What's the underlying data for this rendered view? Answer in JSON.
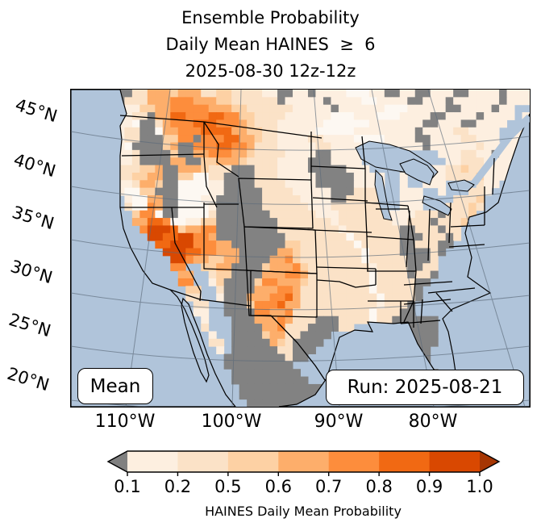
{
  "title": {
    "line1": "Ensemble Probability",
    "line2": "Daily Mean HAINES  ≥  6",
    "line3": "2025-08-30 12z-12z"
  },
  "map": {
    "stat_label": "Mean",
    "run_label": "Run: 2025-08-21",
    "y_axis": {
      "labels": [
        "45°N",
        "40°N",
        "35°N",
        "30°N",
        "25°N",
        "20°N"
      ]
    },
    "x_axis": {
      "labels": [
        "110°W",
        "100°W",
        "90°W",
        "80°W"
      ]
    },
    "ocean_color": "#b0c4da",
    "mask_color": "#828282",
    "palette": {
      "o": "#b0c4da",
      "L": "#b0c4da",
      "g": "#828282",
      "w": "#fdf8f2",
      "1": "#fdefe0",
      "2": "#fbe2c7",
      "3": "#fdd1a4",
      "4": "#fdae6b",
      "5": "#fd8d3c",
      "6": "#f16913",
      "7": "#d94801"
    },
    "grid": [
      "oooooogg2244434442233222211gg11g1111www11gg11gg111gg1111g111",
      "oooooog22244455544433222222g11111g1111ww1111gg111g111111g111",
      "oooooog113344555554443322222211111g111111www11111gg1111g11LL",
      "oooooo1122g44665556655332222111111www111www1111gg1111g1111L1",
      "oooooo11wgg2455566655543222111111wwwwww1111111gg111gg1111LL1",
      "oooooo122ggw44555666644332211111wwwww11111111g1111221111LL11",
      "oooooo122ggg3355g55566443221111221111wwww1111gg111122111L111",
      "oooooo1wgggg34gg5556655422211111221111www11111g1111112111111",
      "oooooo112gggg3gg4455544322221111gg11111LLLLLLLLL1112211g1111",
      "oooooo112gggg44gg33444322221111ggg1111LLLLLLLLLLL11222111111",
      "oooooo222334gg4443222ggg2221111ggggg111LLLLgLLL11223221111oo",
      "oooooo223344gg33ww22gggg22211111ggggg1111LL1LLL1122223111ooo",
      "oooooo112443ggwwww11gggg22221111ggggg1111LL1LL111LLLL211oooo",
      "oooooo1ww33gggwwww11ggggg222211111ggg2222LL111LL1LLL221ooooo",
      "ooooooo1ww44ggwww11gggggg222221111gg22222LL111LLLL2223oooooo",
      "ooooooo2ww54ggwwww1gggggg2222221112222222LL111LLL22232oooooo",
      "oooooooo355wggwwww2ggggggg2222221112222221111222g2223ooooooo",
      "oooooooo44665ww1133gggggggg22222221222222211222g2223oooooooo",
      "ooooooooo5777634455gggggggg2222222212222222gg222g22ooooooooo",
      "oooooooooo776677554ggggggggg22222222w222222ggg222g2ooooooooo",
      "ooooooooooo6677755544ggggggg332222222w22222gg222ggoooooooooo",
      "oooooooooooo7776655444ggggg44322222222w2222gggg2gooooooooooo",
      "ooooooooooooo775443344gggg445322222222w22222ggg2oooooooooooo",
      "ooooooooooooo55oo3344gggg3444532222222212222gg22oooooooooooo",
      "oooooooooooooo44oo233gggg44455422222222w2222g22goooooooooooo",
      "oooooooooooooo55oo13gggg355444322222222w22222ggooooooooooooo",
      "ooooooooooooooo33oo2gggg444554222222222w22222goooooooooooooo",
      "ooooooooooooooo22oo1ggg44455642222222222w2222goooooooooooooo",
      "oooooooooooooooo22ooggg355564422222222221222gooooooooooooooo",
      "oooooooooooooooo11oogggg554452222222222w222ggooooooooooooooo",
      "ooooooooooooooooo1oooggg44454222ggg2222w22ggggggoooooooooooo",
      "ooooooooooooooooo2ooogggg445222gggg22oooooogggggoooooooooooo",
      "oooooooooooooooooo1oogggg34422ggggooooooooooggggoooooooooooo",
      "oooooooooooooooooo22oggggg432ggggoooooooooooggggoooooooooooo",
      "ooooooooooooooooooo1ogggggg22gggoooooooooooogggooooooooooooo",
      "oooooooooooooooooooogggggggg2ggooooooooooooogggooooooooooooo",
      "oooooooooooooooooooogggggggggooooooooooooooooggooooooooooooo",
      "ooooooooooooooooooooogggggggggooooooooooooooogggoooooooooooo",
      "oooooooooooooooooooooggggggggggoooooooooooooooggoooooooooooo",
      "oooooooooooooooooooooogggggggggggooooooooooooogoooooooooooo",
      "oooooooooooooooooooooogggggggggggooooooooooooooooooooooooooo",
      "ooooooooooooooooooooooogggggggggggoooooooooooooooooooooooooo"
    ]
  },
  "colorbar": {
    "title": "HAINES Daily Mean Probability",
    "tick_labels": [
      "0.1",
      "0.2",
      "0.5",
      "0.6",
      "0.7",
      "0.8",
      "0.9",
      "1.0"
    ],
    "segment_colors": [
      "#fdefe0",
      "#fbe2c7",
      "#fdd1a4",
      "#fdae6b",
      "#fd8d3c",
      "#f16913",
      "#d94801"
    ],
    "under_color": "#808080",
    "over_color": "#a63603"
  },
  "chart_data": {
    "type": "heatmap",
    "title": "Ensemble Probability Daily Mean HAINES ≥ 6, 2025-08-30 12z-12z",
    "colorbar_label": "HAINES Daily Mean Probability",
    "colorbar_boundaries": [
      0.1,
      0.2,
      0.5,
      0.6,
      0.7,
      0.8,
      0.9,
      1.0
    ],
    "lat_ticks": [
      "45°N",
      "40°N",
      "35°N",
      "30°N",
      "25°N",
      "20°N"
    ],
    "lon_ticks": [
      "110°W",
      "100°W",
      "90°W",
      "80°W"
    ],
    "notes": "Gridded probability field over CONUS; gray cells = masked/no data; highest probabilities over Montana and southern California/Arizona"
  }
}
